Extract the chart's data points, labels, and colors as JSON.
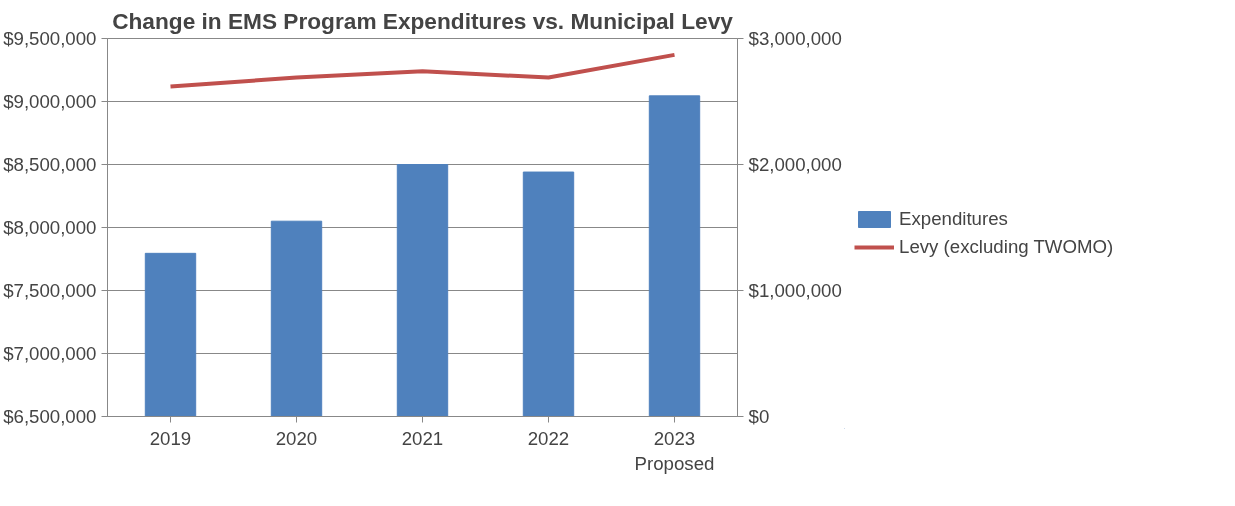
{
  "chart_data": {
    "type": "bar",
    "title": "Change in EMS Program Expenditures vs. Municipal Levy",
    "categories": [
      "2019",
      "2020",
      "2021",
      "2022",
      "2023\nProposed"
    ],
    "series": [
      {
        "name": "Expenditures",
        "color": "#4f81bd",
        "values": [
          7795000,
          8050000,
          8500000,
          8440000,
          9045000
        ]
      },
      {
        "name": "Levy (excluding TWOMO)",
        "type": "line",
        "axis": "y2",
        "color": "#c0504d",
        "values": [
          2620000,
          2690000,
          2740000,
          2690000,
          2870000
        ]
      }
    ],
    "ylim": [
      6500000,
      9500000
    ],
    "yticks": [
      {
        "value": 6500000,
        "label": "$6,500,000"
      },
      {
        "value": 7000000,
        "label": "$7,000,000"
      },
      {
        "value": 7500000,
        "label": "$7,500,000"
      },
      {
        "value": 8000000,
        "label": "$8,000,000"
      },
      {
        "value": 8500000,
        "label": "$8,500,000"
      },
      {
        "value": 9000000,
        "label": "$9,000,000"
      },
      {
        "value": 9500000,
        "label": "$9,500,000"
      }
    ],
    "y2lim": [
      0,
      3000000
    ],
    "y2ticks": [
      {
        "value": 0,
        "label": "$0"
      },
      {
        "value": 1000000,
        "label": "$1,000,000"
      },
      {
        "value": 2000000,
        "label": "$2,000,000"
      },
      {
        "value": 3000000,
        "label": "$3,000,000"
      }
    ],
    "grid": "y",
    "legend": "right",
    "marker": "none",
    "line_style": "solid"
  }
}
